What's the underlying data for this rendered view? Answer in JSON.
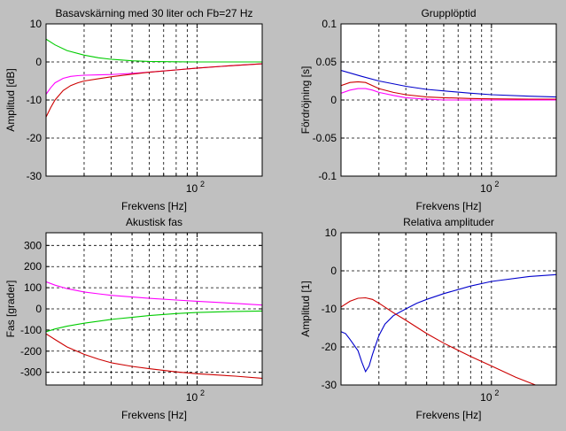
{
  "chart_data": [
    {
      "type": "line",
      "title": "Basavskärning med 30 liter och Fb=27 Hz",
      "xlabel": "Frekvens [Hz]",
      "ylabel": "Amplitud [dB]",
      "xscale": "log",
      "xlim": [
        20,
        200
      ],
      "ylim": [
        -30,
        10
      ],
      "yticks": [
        10,
        0,
        -10,
        -20,
        -30
      ],
      "xtick_label": "10",
      "xtick_exp": "2",
      "grid": true,
      "series": [
        {
          "color": "#00cc00",
          "x": [
            20,
            22,
            25,
            30,
            35,
            40,
            50,
            60,
            80,
            100,
            150,
            200
          ],
          "y": [
            6,
            4.5,
            3,
            1.8,
            1.1,
            0.7,
            0.3,
            0.15,
            0.05,
            0,
            0,
            0
          ]
        },
        {
          "color": "#ff00ff",
          "x": [
            20,
            21,
            22,
            24,
            26,
            28,
            30,
            35,
            40,
            50,
            60,
            80,
            100,
            150,
            200
          ],
          "y": [
            -8.5,
            -6.8,
            -5.5,
            -4.3,
            -3.8,
            -3.6,
            -3.5,
            -3.4,
            -3.3,
            -3,
            -2.7,
            -2.1,
            -1.6,
            -0.9,
            -0.5
          ]
        },
        {
          "color": "#cc0000",
          "x": [
            20,
            21,
            22,
            24,
            26,
            28,
            30,
            35,
            40,
            50,
            60,
            80,
            100,
            150,
            200
          ],
          "y": [
            -14.5,
            -12,
            -10,
            -7.5,
            -6.2,
            -5.5,
            -5,
            -4.4,
            -3.9,
            -3.2,
            -2.7,
            -2.1,
            -1.6,
            -0.9,
            -0.5
          ]
        }
      ]
    },
    {
      "type": "line",
      "title": "Grupplöptid",
      "xlabel": "Frekvens [Hz]",
      "ylabel": "Fördröjning [s]",
      "xscale": "log",
      "xlim": [
        20,
        200
      ],
      "ylim": [
        -0.1,
        0.1
      ],
      "yticks": [
        0.1,
        0.05,
        0,
        -0.05,
        -0.1
      ],
      "ytick_labels": [
        "0.1",
        "0.05",
        "0",
        "-0.05",
        "-0.1"
      ],
      "xtick_label": "10",
      "xtick_exp": "2",
      "grid": true,
      "series": [
        {
          "color": "#0000cc",
          "x": [
            20,
            25,
            30,
            40,
            50,
            60,
            80,
            100,
            150,
            200
          ],
          "y": [
            0.039,
            0.031,
            0.025,
            0.018,
            0.014,
            0.012,
            0.009,
            0.007,
            0.005,
            0.004
          ]
        },
        {
          "color": "#cc0000",
          "x": [
            20,
            22,
            24,
            26,
            28,
            30,
            35,
            40,
            50,
            60,
            80,
            100,
            150,
            200
          ],
          "y": [
            0.019,
            0.023,
            0.024,
            0.023,
            0.019,
            0.015,
            0.01,
            0.007,
            0.004,
            0.003,
            0.002,
            0.0015,
            0.001,
            0.001
          ]
        },
        {
          "color": "#ff00ff",
          "x": [
            20,
            22,
            24,
            26,
            28,
            30,
            35,
            40,
            50,
            60,
            80,
            100,
            150,
            200
          ],
          "y": [
            0.009,
            0.013,
            0.015,
            0.015,
            0.013,
            0.01,
            0.006,
            0.003,
            0.001,
            0,
            0,
            0,
            0,
            0
          ]
        }
      ]
    },
    {
      "type": "line",
      "title": "Akustisk fas",
      "xlabel": "Frekvens [Hz]",
      "ylabel": "Fas [grader]",
      "xscale": "log",
      "xlim": [
        20,
        200
      ],
      "ylim": [
        -360,
        360
      ],
      "yticks": [
        300,
        200,
        100,
        0,
        -100,
        -200,
        -300
      ],
      "xtick_label": "10",
      "xtick_exp": "2",
      "grid": true,
      "series": [
        {
          "color": "#ff00ff",
          "x": [
            20,
            22,
            25,
            30,
            35,
            40,
            50,
            60,
            80,
            100,
            150,
            200
          ],
          "y": [
            128,
            112,
            96,
            80,
            71,
            64,
            56,
            50,
            42,
            36,
            26,
            18
          ]
        },
        {
          "color": "#00cc00",
          "x": [
            20,
            22,
            25,
            30,
            35,
            40,
            50,
            60,
            80,
            100,
            150,
            200
          ],
          "y": [
            -108,
            -95,
            -82,
            -68,
            -58,
            -50,
            -40,
            -32,
            -22,
            -17,
            -12,
            -10
          ]
        },
        {
          "color": "#cc0000",
          "x": [
            20,
            22,
            25,
            30,
            35,
            40,
            50,
            60,
            80,
            100,
            150,
            200
          ],
          "y": [
            -118,
            -145,
            -180,
            -215,
            -238,
            -255,
            -272,
            -283,
            -298,
            -307,
            -318,
            -328
          ]
        }
      ]
    },
    {
      "type": "line",
      "title": "Relativa amplituder",
      "xlabel": "Frekvens [Hz]",
      "ylabel": "Amplitud [1]",
      "xscale": "log",
      "xlim": [
        20,
        200
      ],
      "ylim": [
        -30,
        10
      ],
      "yticks": [
        10,
        0,
        -10,
        -20,
        -30
      ],
      "xtick_label": "10",
      "xtick_exp": "2",
      "grid": true,
      "series": [
        {
          "color": "#0000cc",
          "x": [
            20,
            21,
            22,
            24,
            25,
            26,
            27,
            28,
            30,
            32,
            35,
            40,
            45,
            50,
            60,
            80,
            100,
            150,
            200
          ],
          "y": [
            -16,
            -16.5,
            -18,
            -21,
            -24,
            -26.5,
            -25,
            -22,
            -17,
            -14,
            -11.8,
            -10,
            -8.5,
            -7.5,
            -6,
            -4,
            -2.8,
            -1.5,
            -1
          ]
        },
        {
          "color": "#cc0000",
          "x": [
            20,
            22,
            24,
            26,
            28,
            30,
            35,
            40,
            50,
            60,
            80,
            100,
            130,
            160
          ],
          "y": [
            -9.5,
            -8,
            -7.2,
            -7.1,
            -7.5,
            -8.5,
            -11,
            -13,
            -16.5,
            -19,
            -22.5,
            -25,
            -28,
            -30
          ]
        }
      ]
    }
  ]
}
